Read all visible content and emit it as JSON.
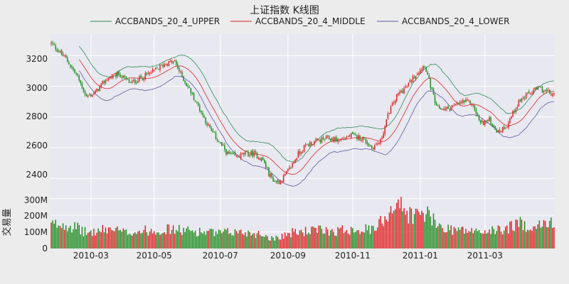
{
  "chart_data": {
    "type": "candlestick",
    "title": "上证指数 K线图",
    "legend": {
      "placement": "top-center",
      "entries": [
        {
          "name": "ACCBANDS_20_4_UPPER",
          "color": "#2e8b57"
        },
        {
          "name": "ACCBANDS_20_4_MIDDLE",
          "color": "#d62728"
        },
        {
          "name": "ACCBANDS_20_4_LOWER",
          "color": "#5a5aa0"
        }
      ]
    },
    "price_axis": {
      "ticks": [
        "2400",
        "2600",
        "2800",
        "3000",
        "3200"
      ],
      "range": [
        2290,
        3340
      ]
    },
    "volume_axis": {
      "label": "交易量",
      "ticks": [
        "0",
        "100M",
        "200M",
        "300M"
      ],
      "range": [
        0,
        320
      ]
    },
    "x_axis": {
      "ticks": [
        "2010-03",
        "2010-05",
        "2010-07",
        "2010-09",
        "2010-11",
        "2011-01",
        "2011-03"
      ]
    },
    "grid": true,
    "colors": {
      "up": "#e31a1c",
      "down": "#1a8a1a",
      "plot_bg": "#e8e8f0",
      "grid": "#ffffff"
    },
    "close_path": [
      [
        0,
        3280
      ],
      [
        10,
        3180
      ],
      [
        18,
        3060
      ],
      [
        24,
        2930
      ],
      [
        30,
        2960
      ],
      [
        38,
        3050
      ],
      [
        46,
        3080
      ],
      [
        54,
        3020
      ],
      [
        62,
        3060
      ],
      [
        70,
        3100
      ],
      [
        78,
        3150
      ],
      [
        84,
        3160
      ],
      [
        88,
        3080
      ],
      [
        94,
        2980
      ],
      [
        100,
        2870
      ],
      [
        108,
        2720
      ],
      [
        114,
        2640
      ],
      [
        120,
        2560
      ],
      [
        126,
        2540
      ],
      [
        132,
        2560
      ],
      [
        138,
        2560
      ],
      [
        144,
        2520
      ],
      [
        148,
        2430
      ],
      [
        152,
        2380
      ],
      [
        156,
        2380
      ],
      [
        162,
        2460
      ],
      [
        168,
        2560
      ],
      [
        174,
        2620
      ],
      [
        180,
        2640
      ],
      [
        188,
        2660
      ],
      [
        196,
        2650
      ],
      [
        204,
        2680
      ],
      [
        212,
        2660
      ],
      [
        218,
        2600
      ],
      [
        224,
        2640
      ],
      [
        230,
        2840
      ],
      [
        236,
        2950
      ],
      [
        242,
        3000
      ],
      [
        248,
        3080
      ],
      [
        254,
        3140
      ],
      [
        258,
        3000
      ],
      [
        262,
        2860
      ],
      [
        268,
        2850
      ],
      [
        274,
        2870
      ],
      [
        280,
        2900
      ],
      [
        286,
        2890
      ],
      [
        292,
        2760
      ],
      [
        298,
        2780
      ],
      [
        304,
        2700
      ],
      [
        310,
        2750
      ],
      [
        318,
        2900
      ],
      [
        326,
        2960
      ],
      [
        332,
        2990
      ],
      [
        338,
        2960
      ],
      [
        342,
        2940
      ]
    ],
    "volume_path": [
      [
        0,
        140
      ],
      [
        10,
        150
      ],
      [
        18,
        120
      ],
      [
        24,
        95
      ],
      [
        30,
        100
      ],
      [
        40,
        120
      ],
      [
        50,
        95
      ],
      [
        60,
        105
      ],
      [
        70,
        110
      ],
      [
        80,
        115
      ],
      [
        88,
        110
      ],
      [
        94,
        105
      ],
      [
        104,
        100
      ],
      [
        114,
        90
      ],
      [
        124,
        100
      ],
      [
        134,
        95
      ],
      [
        144,
        85
      ],
      [
        150,
        60
      ],
      [
        156,
        75
      ],
      [
        164,
        95
      ],
      [
        174,
        105
      ],
      [
        184,
        110
      ],
      [
        194,
        105
      ],
      [
        204,
        120
      ],
      [
        214,
        115
      ],
      [
        220,
        110
      ],
      [
        226,
        180
      ],
      [
        232,
        250
      ],
      [
        236,
        290
      ],
      [
        240,
        215
      ],
      [
        248,
        200
      ],
      [
        256,
        210
      ],
      [
        262,
        140
      ],
      [
        270,
        120
      ],
      [
        280,
        110
      ],
      [
        290,
        100
      ],
      [
        300,
        105
      ],
      [
        310,
        120
      ],
      [
        316,
        150
      ],
      [
        324,
        140
      ],
      [
        332,
        135
      ],
      [
        338,
        150
      ],
      [
        342,
        140
      ]
    ],
    "x_tick_index": [
      27,
      70,
      115,
      161,
      205,
      251,
      295
    ],
    "n_candles": 343,
    "accbands_period": 20
  }
}
